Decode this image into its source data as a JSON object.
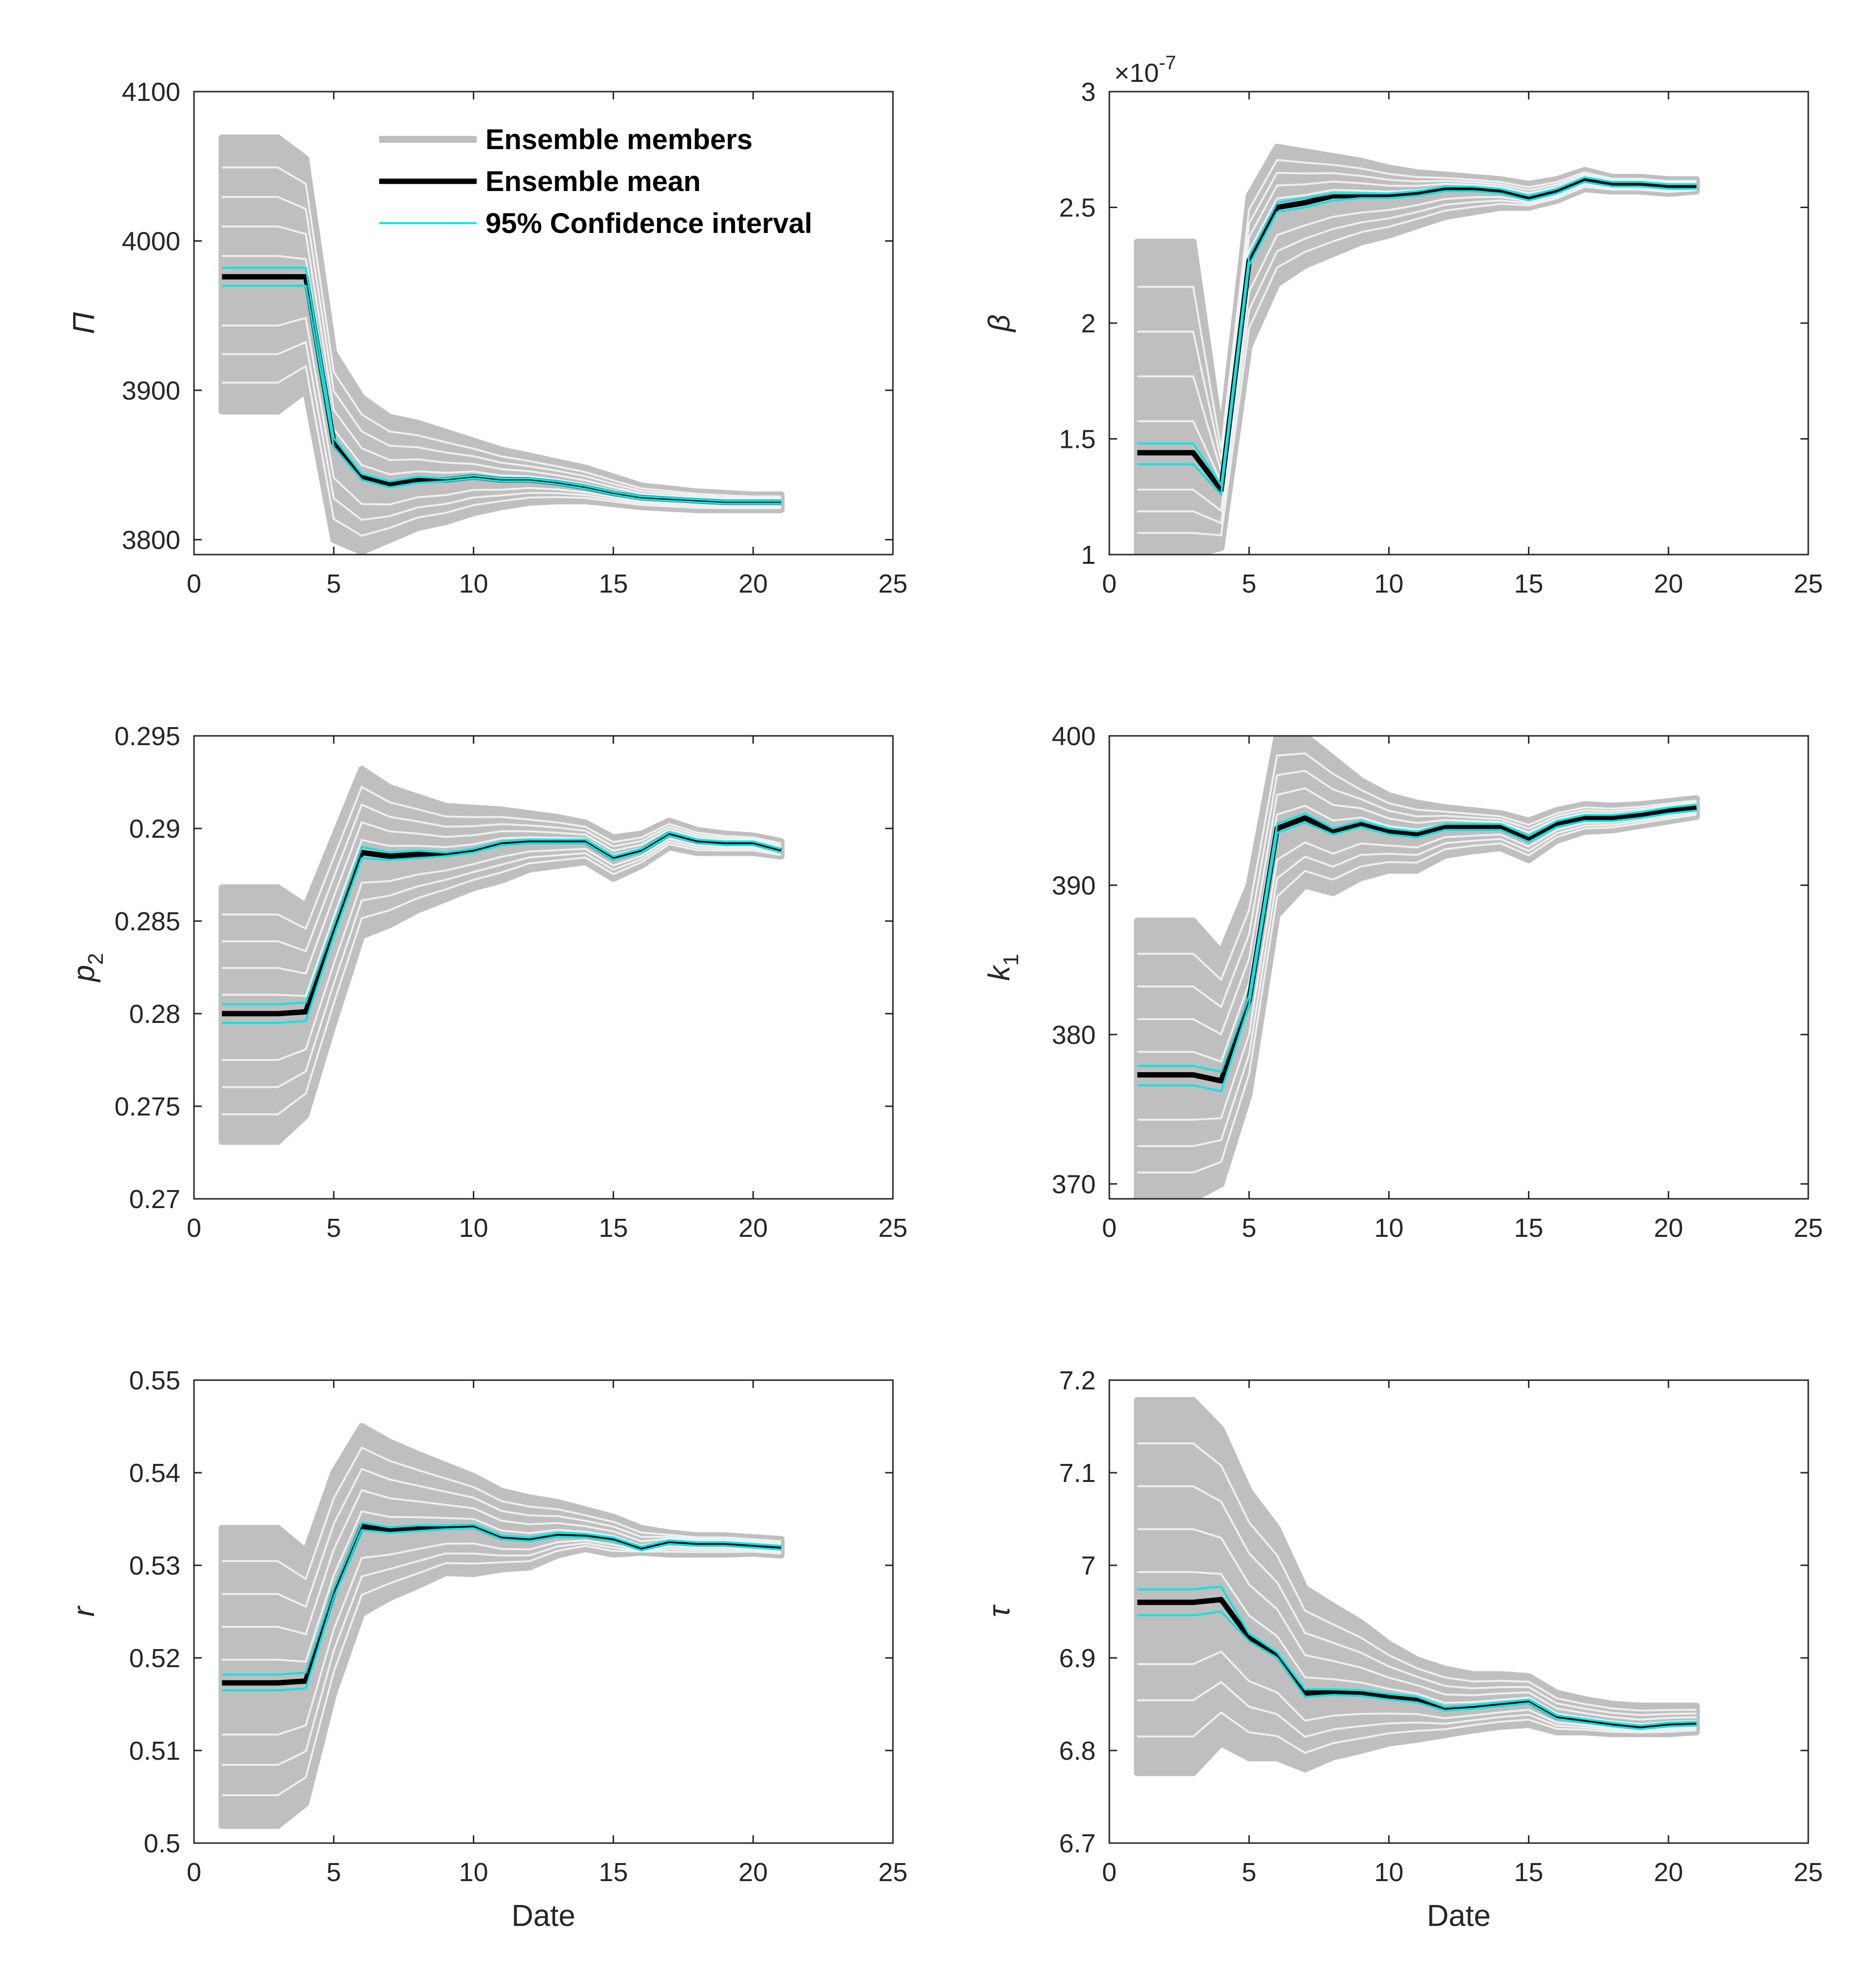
{
  "figure": {
    "legend": {
      "members_label": "Ensemble members",
      "mean_label": "Ensemble mean",
      "ci_label": "95% Confidence interval"
    },
    "colors": {
      "members": "#bfbfbf",
      "mean": "#000000",
      "ci": "#00e5e5",
      "axis": "#262626"
    }
  },
  "chart_data": [
    {
      "type": "line",
      "panel": "top-left",
      "ylabel": "Π",
      "xlabel": "",
      "xlim": [
        0,
        25
      ],
      "ylim": [
        3790,
        4100
      ],
      "xticks": [
        0,
        5,
        10,
        15,
        20,
        25
      ],
      "yticks": [
        3800,
        3900,
        4000,
        4100
      ],
      "ytick_labels": [
        "3800",
        "3900",
        "4000",
        "4100"
      ],
      "exponent_label": "",
      "legend": true,
      "x": [
        1,
        2,
        3,
        4,
        5,
        6,
        7,
        8,
        9,
        10,
        11,
        12,
        13,
        14,
        15,
        16,
        17,
        18,
        19,
        20,
        21
      ],
      "mean": [
        3976,
        3976,
        3976,
        3976,
        3865,
        3842,
        3837,
        3840,
        3840,
        3842,
        3840,
        3840,
        3838,
        3835,
        3831,
        3828,
        3827,
        3826,
        3825,
        3825,
        3825
      ],
      "ci_lower": [
        3970,
        3970,
        3970,
        3970,
        3862,
        3840,
        3835,
        3838,
        3839,
        3841,
        3839,
        3839,
        3837,
        3834,
        3830,
        3827,
        3826,
        3825,
        3824,
        3824,
        3824
      ],
      "ci_upper": [
        3982,
        3982,
        3982,
        3982,
        3868,
        3844,
        3839,
        3842,
        3841,
        3843,
        3841,
        3841,
        3839,
        3836,
        3832,
        3829,
        3828,
        3827,
        3826,
        3826,
        3826
      ],
      "members_min": [
        3886,
        3886,
        3886,
        3900,
        3800,
        3792,
        3800,
        3808,
        3812,
        3818,
        3822,
        3825,
        3826,
        3826,
        3824,
        3822,
        3821,
        3820,
        3820,
        3820,
        3820
      ],
      "members_max": [
        4069,
        4069,
        4069,
        4055,
        3925,
        3895,
        3882,
        3878,
        3872,
        3866,
        3860,
        3856,
        3852,
        3848,
        3842,
        3836,
        3834,
        3832,
        3831,
        3830,
        3830
      ]
    },
    {
      "type": "line",
      "panel": "top-right",
      "ylabel": "β",
      "xlabel": "",
      "xlim": [
        0,
        25
      ],
      "ylim": [
        1,
        3
      ],
      "xticks": [
        0,
        5,
        10,
        15,
        20,
        25
      ],
      "yticks": [
        1,
        1.5,
        2,
        2.5,
        3
      ],
      "ytick_labels": [
        "1",
        "1.5",
        "2",
        "2.5",
        "3"
      ],
      "exponent_label": "×10",
      "exponent_power": "-7",
      "legend": false,
      "x": [
        1,
        2,
        3,
        4,
        5,
        6,
        7,
        8,
        9,
        10,
        11,
        12,
        13,
        14,
        15,
        16,
        17,
        18,
        19,
        20,
        21
      ],
      "mean": [
        1.44,
        1.44,
        1.44,
        1.28,
        2.27,
        2.5,
        2.52,
        2.55,
        2.55,
        2.55,
        2.56,
        2.58,
        2.58,
        2.57,
        2.54,
        2.57,
        2.62,
        2.6,
        2.6,
        2.59,
        2.59
      ],
      "ci_lower": [
        1.39,
        1.39,
        1.39,
        1.26,
        2.25,
        2.48,
        2.5,
        2.53,
        2.54,
        2.54,
        2.55,
        2.57,
        2.57,
        2.56,
        2.53,
        2.56,
        2.61,
        2.59,
        2.59,
        2.58,
        2.58
      ],
      "ci_upper": [
        1.48,
        1.48,
        1.48,
        1.3,
        2.29,
        2.52,
        2.54,
        2.56,
        2.56,
        2.56,
        2.57,
        2.59,
        2.59,
        2.58,
        2.55,
        2.58,
        2.63,
        2.61,
        2.61,
        2.6,
        2.6
      ],
      "members_min": [
        1.0,
        1.0,
        1.0,
        1.03,
        1.9,
        2.17,
        2.25,
        2.3,
        2.35,
        2.38,
        2.42,
        2.46,
        2.48,
        2.5,
        2.5,
        2.53,
        2.58,
        2.57,
        2.57,
        2.56,
        2.57
      ],
      "members_max": [
        2.35,
        2.35,
        2.35,
        1.5,
        2.55,
        2.76,
        2.74,
        2.72,
        2.7,
        2.67,
        2.65,
        2.64,
        2.63,
        2.62,
        2.6,
        2.62,
        2.66,
        2.63,
        2.63,
        2.62,
        2.62
      ]
    },
    {
      "type": "line",
      "panel": "middle-left",
      "ylabel": "p",
      "ylabel_sub": "2",
      "xlabel": "",
      "xlim": [
        0,
        25
      ],
      "ylim": [
        0.27,
        0.295
      ],
      "xticks": [
        0,
        5,
        10,
        15,
        20,
        25
      ],
      "yticks": [
        0.27,
        0.275,
        0.28,
        0.285,
        0.29,
        0.295
      ],
      "ytick_labels": [
        "0.27",
        "0.275",
        "0.28",
        "0.285",
        "0.29",
        "0.295"
      ],
      "exponent_label": "",
      "legend": false,
      "x": [
        1,
        2,
        3,
        4,
        5,
        6,
        7,
        8,
        9,
        10,
        11,
        12,
        13,
        14,
        15,
        16,
        17,
        18,
        19,
        20,
        21
      ],
      "mean": [
        0.28,
        0.28,
        0.28,
        0.2801,
        0.2845,
        0.2887,
        0.2885,
        0.2886,
        0.2886,
        0.2888,
        0.2892,
        0.2893,
        0.2893,
        0.2893,
        0.2884,
        0.2888,
        0.2897,
        0.2893,
        0.2892,
        0.2892,
        0.2888
      ],
      "ci_lower": [
        0.2795,
        0.2795,
        0.2795,
        0.2796,
        0.2842,
        0.2884,
        0.2883,
        0.2884,
        0.2885,
        0.2887,
        0.2891,
        0.2892,
        0.2892,
        0.2892,
        0.2883,
        0.2887,
        0.2896,
        0.2892,
        0.2891,
        0.2891,
        0.2887
      ],
      "ci_upper": [
        0.2805,
        0.2805,
        0.2805,
        0.2806,
        0.2848,
        0.289,
        0.2887,
        0.2888,
        0.2887,
        0.2889,
        0.2893,
        0.2894,
        0.2894,
        0.2894,
        0.2885,
        0.2889,
        0.2898,
        0.2894,
        0.2893,
        0.2893,
        0.2889
      ],
      "members_min": [
        0.2731,
        0.2731,
        0.2731,
        0.2745,
        0.2795,
        0.2842,
        0.2848,
        0.2856,
        0.2862,
        0.2868,
        0.2872,
        0.2878,
        0.288,
        0.2882,
        0.2873,
        0.288,
        0.289,
        0.2887,
        0.2887,
        0.2887,
        0.2885
      ],
      "members_max": [
        0.2868,
        0.2868,
        0.2868,
        0.2858,
        0.2895,
        0.2932,
        0.2922,
        0.2917,
        0.2912,
        0.2911,
        0.291,
        0.2908,
        0.2906,
        0.2903,
        0.2895,
        0.2897,
        0.2904,
        0.2899,
        0.2897,
        0.2896,
        0.2893
      ]
    },
    {
      "type": "line",
      "panel": "middle-right",
      "ylabel": "k",
      "ylabel_sub": "1",
      "xlabel": "",
      "xlim": [
        0,
        25
      ],
      "ylim": [
        369,
        400
      ],
      "xticks": [
        0,
        5,
        10,
        15,
        20,
        25
      ],
      "yticks": [
        370,
        380,
        390,
        400
      ],
      "ytick_labels": [
        "370",
        "380",
        "390",
        "400"
      ],
      "exponent_label": "",
      "legend": false,
      "x": [
        1,
        2,
        3,
        4,
        5,
        6,
        7,
        8,
        9,
        10,
        11,
        12,
        13,
        14,
        15,
        16,
        17,
        18,
        19,
        20,
        21
      ],
      "mean": [
        377.3,
        377.3,
        377.3,
        376.9,
        382.3,
        393.8,
        394.5,
        393.6,
        394.1,
        393.6,
        393.4,
        393.9,
        393.9,
        393.9,
        393.1,
        394.1,
        394.5,
        394.5,
        394.7,
        395,
        395.2
      ],
      "ci_lower": [
        376.6,
        376.6,
        376.6,
        376.2,
        382,
        393.5,
        394.2,
        393.4,
        393.9,
        393.4,
        393.2,
        393.7,
        393.7,
        393.7,
        392.9,
        393.9,
        394.3,
        394.3,
        394.5,
        394.8,
        395
      ],
      "ci_upper": [
        377.9,
        377.9,
        377.9,
        377.5,
        382.6,
        394.1,
        394.8,
        393.8,
        394.3,
        393.8,
        393.6,
        394.1,
        394.1,
        394.1,
        393.3,
        394.3,
        394.7,
        394.7,
        394.9,
        395.2,
        395.4
      ],
      "members_min": [
        369,
        369,
        369,
        370,
        376,
        388,
        390,
        389.5,
        390.5,
        391,
        391,
        392,
        392.3,
        392.5,
        391.7,
        393,
        393.6,
        393.7,
        394,
        394.3,
        394.6
      ],
      "members_max": [
        387.6,
        387.6,
        387.6,
        385.5,
        390,
        400,
        400,
        398.5,
        397,
        396,
        395.5,
        395.2,
        395,
        394.8,
        394.3,
        395,
        395.4,
        395.3,
        395.4,
        395.6,
        395.8
      ]
    },
    {
      "type": "line",
      "panel": "bottom-left",
      "ylabel": "r",
      "xlabel": "Date",
      "xlim": [
        0,
        25
      ],
      "ylim": [
        0.5,
        0.55
      ],
      "xticks": [
        0,
        5,
        10,
        15,
        20,
        25
      ],
      "yticks": [
        0.5,
        0.51,
        0.52,
        0.53,
        0.54,
        0.55
      ],
      "ytick_labels": [
        "0.5",
        "0.51",
        "0.52",
        "0.53",
        "0.54",
        "0.55"
      ],
      "exponent_label": "",
      "legend": false,
      "x": [
        1,
        2,
        3,
        4,
        5,
        6,
        7,
        8,
        9,
        10,
        11,
        12,
        13,
        14,
        15,
        16,
        17,
        18,
        19,
        20,
        21
      ],
      "mean": [
        0.5173,
        0.5173,
        0.5173,
        0.5175,
        0.527,
        0.5342,
        0.5338,
        0.534,
        0.5341,
        0.5342,
        0.533,
        0.5328,
        0.5333,
        0.5332,
        0.5328,
        0.5318,
        0.5325,
        0.5323,
        0.5323,
        0.5321,
        0.5319
      ],
      "ci_lower": [
        0.5165,
        0.5165,
        0.5165,
        0.5167,
        0.5265,
        0.5338,
        0.5335,
        0.5337,
        0.5339,
        0.534,
        0.5328,
        0.5326,
        0.5331,
        0.533,
        0.5326,
        0.5316,
        0.5323,
        0.5321,
        0.5321,
        0.5319,
        0.5317
      ],
      "ci_upper": [
        0.5182,
        0.5182,
        0.5182,
        0.5184,
        0.5275,
        0.5346,
        0.5341,
        0.5343,
        0.5343,
        0.5344,
        0.5332,
        0.533,
        0.5335,
        0.5334,
        0.533,
        0.532,
        0.5327,
        0.5325,
        0.5325,
        0.5323,
        0.5321
      ],
      "members_min": [
        0.5019,
        0.5019,
        0.5019,
        0.5043,
        0.5162,
        0.5248,
        0.5265,
        0.5278,
        0.5292,
        0.5291,
        0.5296,
        0.5298,
        0.5311,
        0.5318,
        0.5312,
        0.5314,
        0.5312,
        0.5312,
        0.5312,
        0.5313,
        0.5311
      ],
      "members_max": [
        0.534,
        0.534,
        0.534,
        0.5315,
        0.54,
        0.545,
        0.5433,
        0.542,
        0.5408,
        0.5396,
        0.538,
        0.5373,
        0.5368,
        0.536,
        0.5352,
        0.534,
        0.5335,
        0.5332,
        0.5332,
        0.533,
        0.5328
      ]
    },
    {
      "type": "line",
      "panel": "bottom-right",
      "ylabel": "τ",
      "xlabel": "Date",
      "xlim": [
        0,
        25
      ],
      "ylim": [
        6.7,
        7.2
      ],
      "xticks": [
        0,
        5,
        10,
        15,
        20,
        25
      ],
      "yticks": [
        6.7,
        6.8,
        6.9,
        7,
        7.1,
        7.2
      ],
      "ytick_labels": [
        "6.7",
        "6.8",
        "6.9",
        "7",
        "7.1",
        "7.2"
      ],
      "exponent_label": "",
      "legend": false,
      "x": [
        1,
        2,
        3,
        4,
        5,
        6,
        7,
        8,
        9,
        10,
        11,
        12,
        13,
        14,
        15,
        16,
        17,
        18,
        19,
        20,
        21
      ],
      "mean": [
        6.96,
        6.96,
        6.96,
        6.963,
        6.922,
        6.903,
        6.862,
        6.863,
        6.862,
        6.858,
        6.855,
        6.845,
        6.847,
        6.85,
        6.853,
        6.836,
        6.832,
        6.828,
        6.825,
        6.828,
        6.829
      ],
      "ci_lower": [
        6.946,
        6.946,
        6.946,
        6.95,
        6.918,
        6.9,
        6.858,
        6.86,
        6.859,
        6.855,
        6.852,
        6.843,
        6.845,
        6.848,
        6.851,
        6.834,
        6.83,
        6.826,
        6.823,
        6.826,
        6.827
      ],
      "ci_upper": [
        6.974,
        6.974,
        6.974,
        6.977,
        6.926,
        6.906,
        6.866,
        6.866,
        6.865,
        6.861,
        6.858,
        6.847,
        6.849,
        6.852,
        6.855,
        6.838,
        6.834,
        6.83,
        6.827,
        6.83,
        6.831
      ],
      "members_min": [
        6.776,
        6.776,
        6.776,
        6.808,
        6.792,
        6.792,
        6.78,
        6.793,
        6.8,
        6.808,
        6.812,
        6.817,
        6.822,
        6.826,
        6.828,
        6.82,
        6.82,
        6.818,
        6.818,
        6.818,
        6.82
      ],
      "members_max": [
        7.178,
        7.178,
        7.178,
        7.147,
        7.08,
        7.04,
        6.975,
        6.956,
        6.938,
        6.915,
        6.898,
        6.888,
        6.882,
        6.882,
        6.88,
        6.862,
        6.855,
        6.85,
        6.848,
        6.848,
        6.848
      ]
    }
  ]
}
